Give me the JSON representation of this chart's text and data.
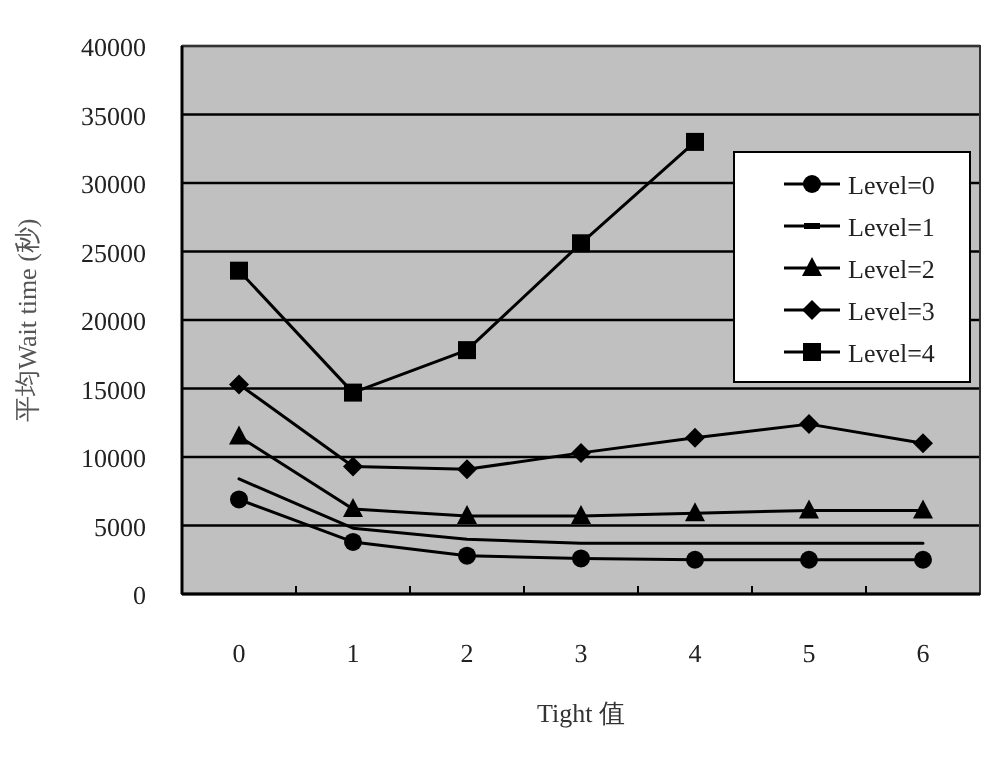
{
  "chart_data": {
    "type": "line",
    "xlabel": "Tight 值",
    "ylabel": "平均Wait time (秒)",
    "categories": [
      "0",
      "1",
      "2",
      "3",
      "4",
      "5",
      "6"
    ],
    "ylim": [
      0,
      40000
    ],
    "yticks": [
      0,
      5000,
      10000,
      15000,
      20000,
      25000,
      30000,
      35000,
      40000
    ],
    "grid": "y",
    "legend": "right",
    "series": [
      {
        "name": "Level=0",
        "color": "#000000",
        "marker": "circle",
        "values": [
          6900,
          3800,
          2800,
          2600,
          2500,
          2500,
          2500
        ]
      },
      {
        "name": "Level=1",
        "color": "#000000",
        "marker": "none",
        "values": [
          8400,
          4800,
          4000,
          3700,
          3700,
          3700,
          3700
        ]
      },
      {
        "name": "Level=2",
        "color": "#000000",
        "marker": "triangle",
        "values": [
          11500,
          6200,
          5700,
          5700,
          5900,
          6100,
          6100
        ]
      },
      {
        "name": "Level=3",
        "color": "#000000",
        "marker": "diamond",
        "values": [
          15300,
          9300,
          9100,
          10300,
          11400,
          12400,
          11000
        ]
      },
      {
        "name": "Level=4",
        "color": "#000000",
        "marker": "square",
        "values": [
          23600,
          14700,
          17800,
          25600,
          33000,
          null,
          null
        ]
      }
    ]
  }
}
